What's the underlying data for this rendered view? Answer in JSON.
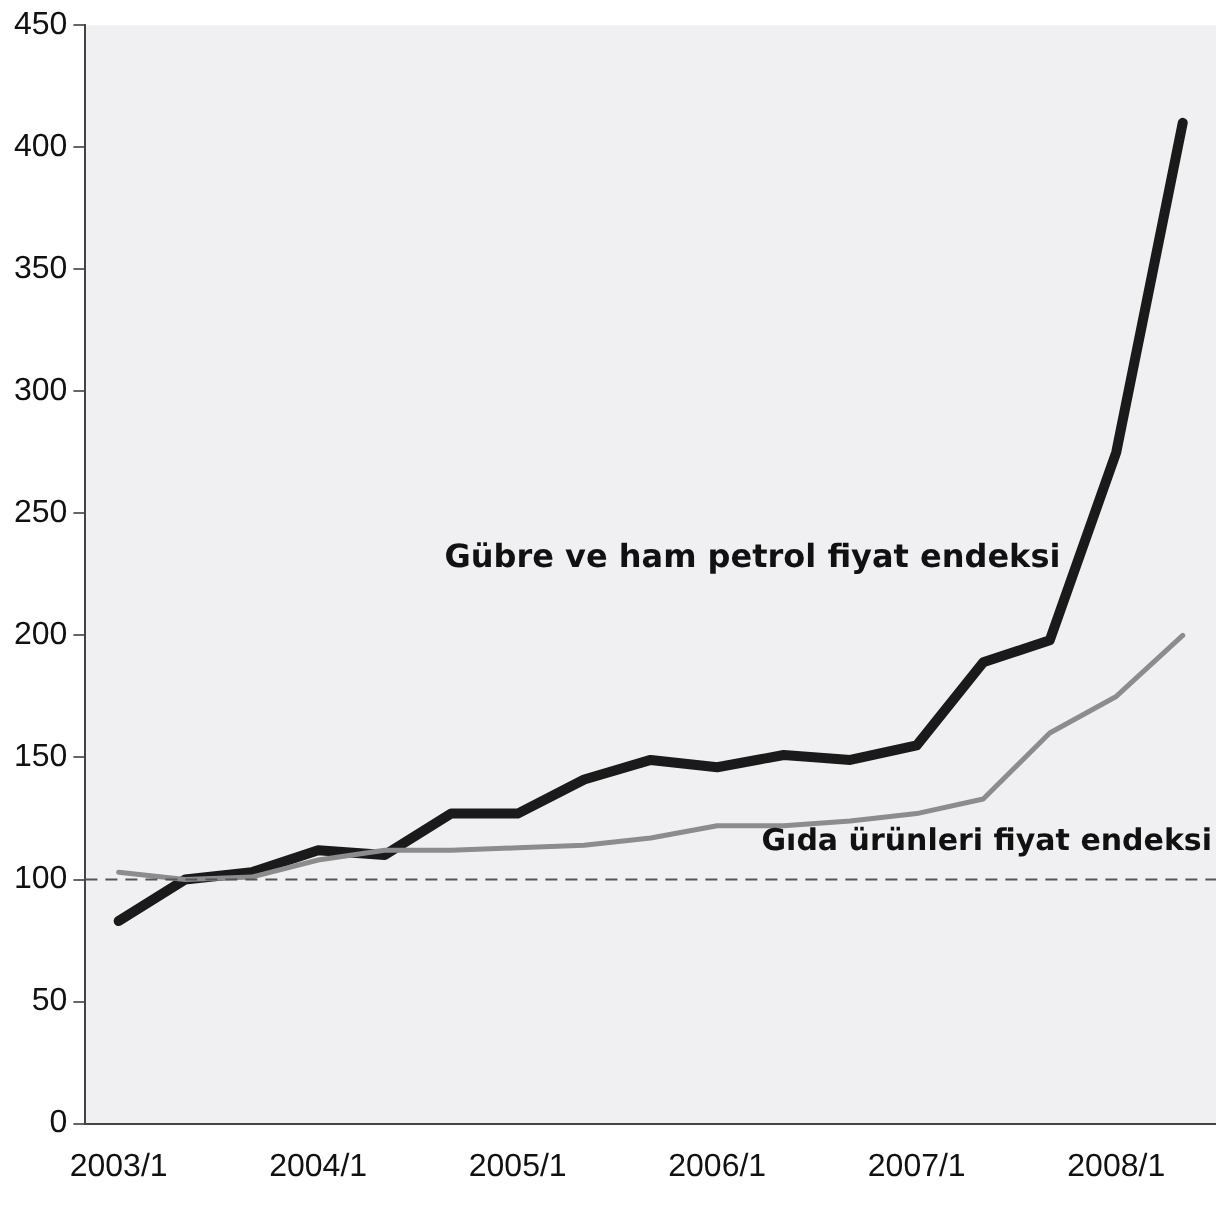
{
  "chart_data": {
    "type": "line",
    "categories": [
      "2003/1",
      null,
      null,
      "2004/1",
      null,
      null,
      "2005/1",
      null,
      null,
      "2006/1",
      null,
      null,
      "2007/1",
      null,
      null,
      "2008/1",
      null
    ],
    "series": [
      {
        "name": "Gıda ürünleri fiyat endeksi",
        "color": "#8c8c8c",
        "values": [
          103,
          100,
          101,
          108,
          112,
          112,
          113,
          114,
          117,
          122,
          122,
          124,
          127,
          133,
          160,
          175,
          200
        ]
      },
      {
        "name": "Gübre ve ham petrol fiyat endeksi",
        "color": "#1a1a1a",
        "values": [
          83,
          100,
          103,
          112,
          110,
          127,
          127,
          141,
          149,
          146,
          151,
          149,
          155,
          189,
          198,
          275,
          410
        ]
      }
    ],
    "ylim": [
      0,
      450
    ],
    "yticks": [
      0,
      50,
      100,
      150,
      200,
      250,
      300,
      350,
      400,
      450
    ],
    "grid": false,
    "legend": false,
    "marker": "none",
    "line_style": "solid",
    "ref_lines": [
      {
        "axis": "y",
        "value": 100,
        "color": "#555555",
        "line_style": "dashed"
      }
    ]
  }
}
